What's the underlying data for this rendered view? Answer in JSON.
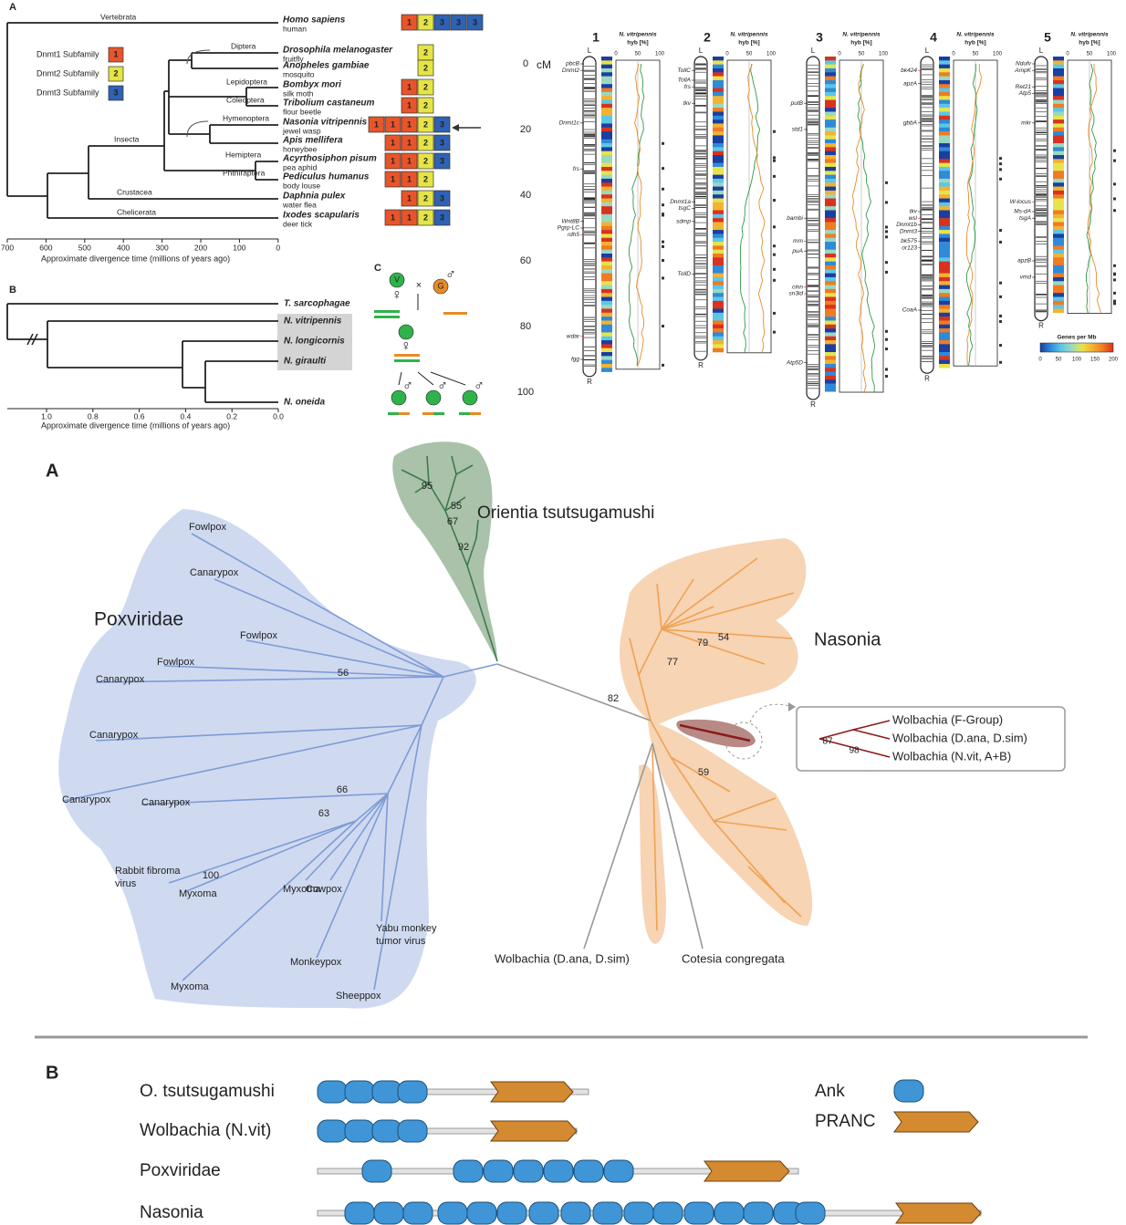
{
  "phylogeny": {
    "label": "A",
    "clades": [
      "Vertebrata",
      "Diptera",
      "Lepidoptera",
      "Coleoptera",
      "Hymenoptera",
      "Insecta",
      "Hemiptera",
      "Phthiraptera",
      "Crustacea",
      "Chelicerata"
    ],
    "legend": [
      {
        "name": "Dnmt1 Subfamily",
        "box": "1",
        "color": "#e8552b"
      },
      {
        "name": "Dnmt2 Subfamily",
        "box": "2",
        "color": "#e4e447"
      },
      {
        "name": "Dnmt3 Subfamily",
        "box": "3",
        "color": "#2f62b3"
      }
    ],
    "species": [
      {
        "name": "Homo sapiens",
        "common": "human",
        "boxes": [
          "1",
          "2",
          "3",
          "3",
          "3"
        ]
      },
      {
        "name": "Drosophila melanogaster",
        "common": "fruitfly",
        "boxes": [
          "2"
        ]
      },
      {
        "name": "Anopheles gambiae",
        "common": "mosquito",
        "boxes": [
          "2"
        ]
      },
      {
        "name": "Bombyx mori",
        "common": "silk moth",
        "boxes": [
          "1",
          "2"
        ]
      },
      {
        "name": "Tribolium castaneum",
        "common": "flour beetle",
        "boxes": [
          "1",
          "2"
        ]
      },
      {
        "name": "Nasonia vitripennis",
        "common": "jewel wasp",
        "boxes": [
          "1",
          "1",
          "1",
          "2",
          "3"
        ]
      },
      {
        "name": "Apis mellifera",
        "common": "honeybee",
        "boxes": [
          "1",
          "1",
          "2",
          "3"
        ]
      },
      {
        "name": "Acyrthosiphon pisum",
        "common": "pea aphid",
        "boxes": [
          "1",
          "1",
          "2",
          "3"
        ]
      },
      {
        "name": "Pediculus humanus",
        "common": "body louse",
        "boxes": [
          "1",
          "1",
          "2"
        ]
      },
      {
        "name": "Daphnia pulex",
        "common": "water flea",
        "boxes": [
          "1",
          "2",
          "3"
        ]
      },
      {
        "name": "Ixodes scapularis",
        "common": "deer tick",
        "boxes": [
          "1",
          "1",
          "2",
          "3"
        ]
      }
    ],
    "axis_ticks": [
      "700",
      "600",
      "500",
      "400",
      "300",
      "200",
      "100",
      "0"
    ],
    "axis_title": "Approximate divergence time (millions of years ago)"
  },
  "nasonia_tree": {
    "label": "B",
    "species": [
      "T. sarcophagae",
      "N. vitripennis",
      "N. longicornis",
      "N. giraulti",
      "N. oneida"
    ],
    "axis_ticks": [
      "1.0",
      "0.8",
      "0.6",
      "0.4",
      "0.2",
      "0.0"
    ],
    "axis_title": "Approximate divergence time (millions of years ago)"
  },
  "cross": {
    "label": "C",
    "virgin": "V",
    "marker": "G",
    "cross": "×",
    "female": "♀",
    "male": "♂"
  },
  "chromosome_map": {
    "axis_title": "cM",
    "axis_ticks": [
      "0",
      "20",
      "40",
      "60",
      "80",
      "100"
    ],
    "plot_header": [
      "N. vitripennis",
      "hyb [%]"
    ],
    "plot_ticks": [
      "0",
      "50",
      "100"
    ],
    "ends": [
      "L",
      "R"
    ],
    "chromosomes": [
      {
        "number": "1",
        "genes": [
          "pbcB",
          "Dnmt2",
          "Dnmt1c",
          "frs",
          "Wnt8B",
          "Pgrp-LC",
          "rdh5",
          "wdar",
          "fgg"
        ]
      },
      {
        "number": "2",
        "genes": [
          "TollC",
          "TollA",
          "frs",
          "tkv",
          "Dnmt1a",
          "tsgC",
          "sdmp",
          "TollD"
        ]
      },
      {
        "number": "3",
        "genes": [
          "putB",
          "std1",
          "bambi",
          "mm",
          "puA",
          "cinn",
          "sn3id",
          "Atp5D"
        ]
      },
      {
        "number": "4",
        "genes": [
          "bk424",
          "apzA",
          "gbbA",
          "tkv",
          "wsl",
          "Dnmt1b",
          "Dnmt3",
          "bk575",
          "or123",
          "CoaA"
        ]
      },
      {
        "number": "5",
        "genes": [
          "Ndufv",
          "AmpK",
          "Ret21",
          "Atp5",
          "mkr",
          "W-locus",
          "Ms-dA",
          "tsgA",
          "apzB",
          "vmd"
        ]
      }
    ],
    "legend_title": "Genes per Mb",
    "legend_ticks": [
      "0",
      "50",
      "100",
      "150",
      "200"
    ]
  },
  "unrooted_tree": {
    "label": "A",
    "groups": [
      "Orientia tsutsugamushi",
      "Poxviridae",
      "Nasonia"
    ],
    "pox_leaves": [
      "Fowlpox",
      "Canarypox",
      "Fowlpox",
      "Fowlpox",
      "Canarypox",
      "Canarypox",
      "Canarypox",
      "Canarypox",
      "Rabbit fibroma virus",
      "Myxoma",
      "Myxoma",
      "Cowpox",
      "Yabu monkey tumor virus",
      "Monkeypox",
      "Sheeppox",
      "Myxoma"
    ],
    "bootstraps": [
      "95",
      "55",
      "67",
      "92",
      "79",
      "54",
      "77",
      "82",
      "56",
      "66",
      "63",
      "100",
      "59"
    ],
    "other_leaves": [
      "Wolbachia (D.ana, D.sim)",
      "Cotesia congregata"
    ],
    "inset": {
      "leaves": [
        "Wolbachia (F-Group)",
        "Wolbachia (D.ana, D.sim)",
        "Wolbachia (N.vit, A+B)"
      ],
      "bootstraps": [
        "87",
        "98"
      ]
    }
  },
  "domains": {
    "label": "B",
    "rows": [
      "O. tsutsugamushi",
      "Wolbachia (N.vit)",
      "Poxviridae",
      "Nasonia"
    ],
    "legend": [
      "Ank",
      "PRANC"
    ]
  }
}
